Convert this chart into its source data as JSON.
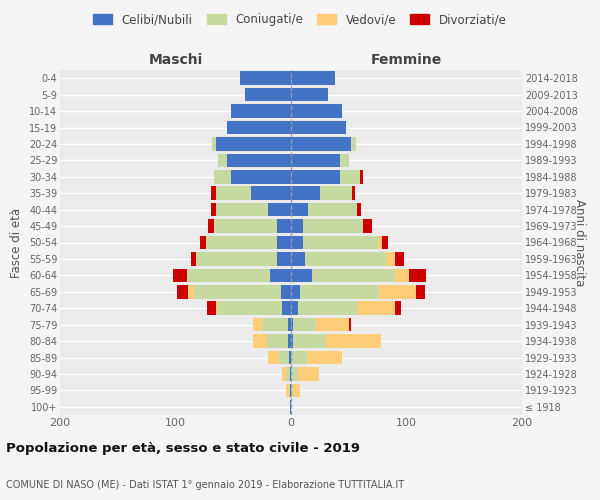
{
  "age_groups": [
    "100+",
    "95-99",
    "90-94",
    "85-89",
    "80-84",
    "75-79",
    "70-74",
    "65-69",
    "60-64",
    "55-59",
    "50-54",
    "45-49",
    "40-44",
    "35-39",
    "30-34",
    "25-29",
    "20-24",
    "15-19",
    "10-14",
    "5-9",
    "0-4"
  ],
  "birth_years": [
    "≤ 1918",
    "1919-1923",
    "1924-1928",
    "1929-1933",
    "1934-1938",
    "1939-1943",
    "1944-1948",
    "1949-1953",
    "1954-1958",
    "1959-1963",
    "1964-1968",
    "1969-1973",
    "1974-1978",
    "1979-1983",
    "1984-1988",
    "1989-1993",
    "1994-1998",
    "1999-2003",
    "2004-2008",
    "2009-2013",
    "2014-2018"
  ],
  "male": {
    "celibi": [
      1,
      1,
      1,
      2,
      3,
      3,
      8,
      9,
      18,
      12,
      12,
      12,
      20,
      35,
      52,
      55,
      65,
      55,
      52,
      40,
      44
    ],
    "coniugati": [
      0,
      1,
      3,
      8,
      18,
      22,
      55,
      75,
      72,
      70,
      62,
      55,
      45,
      30,
      15,
      8,
      3,
      0,
      0,
      0,
      0
    ],
    "vedovi": [
      0,
      2,
      4,
      10,
      12,
      8,
      2,
      5,
      0,
      0,
      0,
      0,
      0,
      0,
      0,
      0,
      0,
      0,
      0,
      0,
      0
    ],
    "divorziati": [
      0,
      0,
      0,
      0,
      0,
      0,
      8,
      10,
      12,
      5,
      5,
      5,
      4,
      4,
      0,
      0,
      0,
      0,
      0,
      0,
      0
    ]
  },
  "female": {
    "nubili": [
      0,
      0,
      0,
      0,
      2,
      2,
      6,
      8,
      18,
      12,
      10,
      10,
      15,
      25,
      42,
      42,
      52,
      48,
      44,
      32,
      38
    ],
    "coniugate": [
      0,
      2,
      6,
      14,
      28,
      20,
      52,
      68,
      72,
      70,
      65,
      52,
      42,
      28,
      18,
      8,
      4,
      0,
      0,
      0,
      0
    ],
    "vedove": [
      0,
      6,
      18,
      30,
      48,
      28,
      32,
      32,
      12,
      8,
      4,
      0,
      0,
      0,
      0,
      0,
      0,
      0,
      0,
      0,
      0
    ],
    "divorziate": [
      0,
      0,
      0,
      0,
      0,
      2,
      5,
      8,
      15,
      8,
      5,
      8,
      4,
      2,
      2,
      0,
      0,
      0,
      0,
      0,
      0
    ]
  },
  "colors": {
    "celibi_nubili": "#4472C4",
    "coniugati": "#C5D9A0",
    "vedovi": "#FFCC77",
    "divorziati": "#CC0000"
  },
  "xlim": 200,
  "title": "Popolazione per età, sesso e stato civile - 2019",
  "subtitle": "COMUNE DI NASO (ME) - Dati ISTAT 1° gennaio 2019 - Elaborazione TUTTITALIA.IT",
  "ylabel_left": "Fasce di età",
  "ylabel_right": "Anni di nascita",
  "xlabel_left": "Maschi",
  "xlabel_right": "Femmine",
  "bg_color": "#EBEBEB",
  "grid_color": "#FFFFFF",
  "fig_bg": "#F5F5F5"
}
